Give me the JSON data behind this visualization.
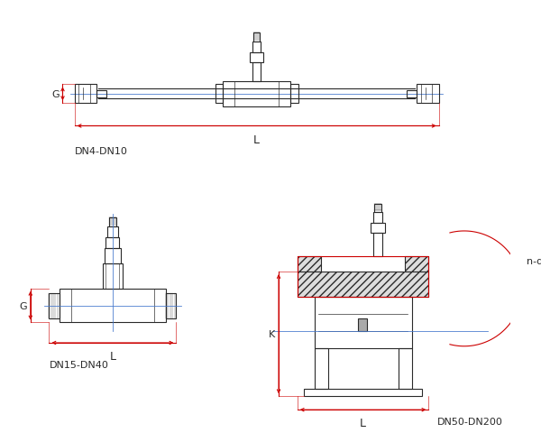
{
  "fig_width": 6.0,
  "fig_height": 4.81,
  "dpi": 100,
  "bg_color": "#ffffff",
  "line_color": "#2a2a2a",
  "red_color": "#cc0000",
  "blue_color": "#4477cc",
  "label_dn4": "DN4-DN10",
  "label_dn15": "DN15-DN40",
  "label_dn50": "DN50-DN200",
  "label_G": "G",
  "label_L": "L",
  "label_K": "K",
  "label_nd": "n-d"
}
